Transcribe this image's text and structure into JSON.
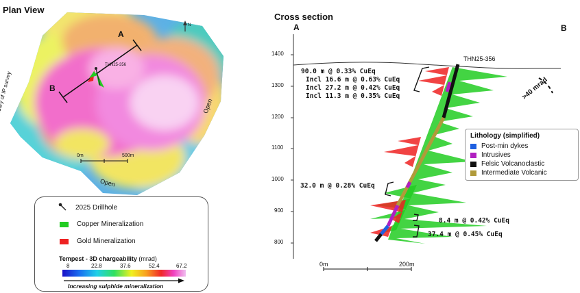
{
  "plan": {
    "title": "Plan View",
    "label_a": "A",
    "label_b": "B",
    "drillhole_label": "THN25-356",
    "boundary_label": "Boundary of IP survey",
    "open_right": "Open",
    "open_bottom": "Open",
    "scale_0": "0m",
    "scale_500": "500m",
    "north": "N"
  },
  "legend": {
    "drillhole": "2025 Drillhole",
    "copper": "Copper Mineralization",
    "gold": "Gold Mineralization",
    "colorbar_title": "Tempest - 3D chargeability",
    "colorbar_unit": "(mrad)",
    "ticks": [
      "8",
      "22.8",
      "37.6",
      "52.4",
      "67.2"
    ],
    "arrow_caption": "Increasing sulphide mineralization",
    "colors": {
      "copper": "#22cc22",
      "gold": "#ee2222"
    }
  },
  "section": {
    "title": "Cross section",
    "label_a": "A",
    "label_b": "B",
    "drillhole_label": "THN25-356",
    "mrad_label": ">40 mrad",
    "y_ticks": [
      "1400",
      "1300",
      "1200",
      "1100",
      "1000",
      "900",
      "800"
    ],
    "scale_0": "0m",
    "scale_200": "200m",
    "intercepts": [
      "90.0 m @ 0.33% CuEq",
      "Incl 16.6 m @ 0.63% CuEq",
      "Incl 27.2 m @ 0.42% CuEq",
      "Incl 11.3 m @ 0.35% CuEq",
      "32.0 m @ 0.28% CuEq",
      "8.4 m @ 0.42% CuEq",
      "37.4 m @ 0.45% CuEq"
    ]
  },
  "lithology": {
    "title": "Lithology (simplified)",
    "items": [
      {
        "label": "Post-min dykes",
        "color": "#1f5fe0"
      },
      {
        "label": "Intrusives",
        "color": "#b020c0"
      },
      {
        "label": "Felsic Volcanoclastic",
        "color": "#111111"
      },
      {
        "label": "Intermediate Volcanic",
        "color": "#b09a3a"
      }
    ]
  }
}
